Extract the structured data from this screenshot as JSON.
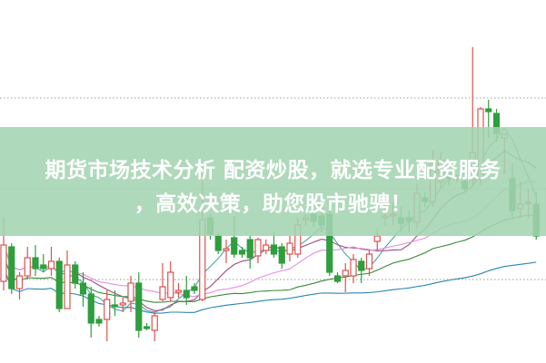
{
  "overlay": {
    "line1": "期货市场技术分析 配资炒股，就选专业配资服务",
    "line2": "，高效决策，助您股市驰骋！"
  },
  "colors": {
    "up": "#d9534f",
    "down": "#2e9e3e",
    "banner": "#a3d4b0",
    "ma5": "#4aa6a0",
    "ma10": "#9b4f7a",
    "ma20": "#e58ee0",
    "ma30": "#3a8a3a",
    "ma60": "#2a85b0",
    "grid": "#999999"
  },
  "chart_data": {
    "type": "candlestick",
    "title": "",
    "grid": "dotted horizontal",
    "note_scale": "relative price (no axis printed)",
    "ylim": [
      0,
      100
    ],
    "ohlc": [
      [
        22.5,
        32.5,
        40,
        20
      ],
      [
        32,
        20.5,
        33,
        19
      ],
      [
        20.5,
        24,
        25,
        17.5
      ],
      [
        24,
        29,
        32,
        23
      ],
      [
        29,
        26,
        32.5,
        24
      ],
      [
        27,
        26,
        30,
        25
      ],
      [
        26,
        28,
        32,
        24
      ],
      [
        28,
        15,
        29,
        14
      ],
      [
        15,
        27,
        31,
        15
      ],
      [
        27,
        22,
        28,
        20.5
      ],
      [
        22,
        19,
        25,
        15.5
      ],
      [
        19,
        11,
        21,
        7
      ],
      [
        12,
        11,
        13,
        10
      ],
      [
        12,
        17.5,
        20,
        6
      ],
      [
        16,
        15.5,
        20,
        13
      ],
      [
        16,
        16.5,
        18,
        14
      ],
      [
        17,
        22,
        24,
        14
      ],
      [
        22,
        9,
        25,
        7
      ],
      [
        10,
        9.5,
        11,
        9
      ],
      [
        9,
        13,
        14,
        6
      ],
      [
        17.5,
        21,
        27.5,
        17
      ],
      [
        18,
        25,
        28,
        17
      ],
      [
        19.5,
        20,
        22,
        18
      ],
      [
        20,
        18,
        24,
        16
      ],
      [
        21,
        20,
        22,
        19
      ],
      [
        17.5,
        39.5,
        50,
        17
      ],
      [
        40,
        35.5,
        41,
        34
      ],
      [
        35,
        31,
        36,
        30
      ],
      [
        31,
        31.5,
        34,
        27.5
      ],
      [
        34.5,
        30,
        40.5,
        29
      ],
      [
        31,
        30,
        32,
        29
      ],
      [
        34,
        29,
        35,
        26
      ],
      [
        29.5,
        34,
        34.5,
        27.5
      ],
      [
        31,
        32.5,
        34,
        30
      ],
      [
        32.5,
        30,
        36,
        29
      ],
      [
        32,
        27.5,
        33,
        26
      ],
      [
        30,
        33,
        35,
        28
      ],
      [
        30,
        38,
        40,
        29
      ],
      [
        39.5,
        40,
        41,
        38
      ],
      [
        41,
        39,
        42.5,
        37.5
      ],
      [
        40.5,
        38,
        42,
        36
      ],
      [
        41,
        25,
        42,
        24
      ],
      [
        24,
        22.5,
        25,
        22
      ],
      [
        24,
        25.5,
        27.5,
        19.5
      ],
      [
        24,
        28.5,
        30,
        22
      ],
      [
        28,
        25.5,
        29,
        22
      ],
      [
        26,
        30,
        31,
        24
      ],
      [
        33.5,
        35,
        37,
        31
      ],
      [
        40,
        40.5,
        44,
        38
      ],
      [
        40.5,
        41,
        44,
        38
      ],
      [
        40,
        38.5,
        43,
        36
      ],
      [
        40,
        39,
        42,
        36
      ],
      [
        38.75,
        46.75,
        49.5,
        37
      ],
      [
        45.5,
        44.5,
        47,
        43
      ],
      [
        44.5,
        55,
        58.75,
        43
      ],
      [
        50,
        55.75,
        58,
        48
      ],
      [
        52,
        51,
        53,
        49
      ],
      [
        50.75,
        51,
        52,
        50
      ],
      [
        50,
        48,
        50.5,
        47
      ],
      [
        50.5,
        58,
        87,
        49
      ],
      [
        50.75,
        70,
        70.5,
        49
      ],
      [
        70,
        69.25,
        72.5,
        62
      ],
      [
        68.75,
        63.25,
        70,
        61
      ],
      [
        62,
        63,
        63.25,
        52
      ],
      [
        50.75,
        42,
        55,
        40
      ],
      [
        42.5,
        43.75,
        50,
        40
      ],
      [
        44,
        44.25,
        48,
        40
      ],
      [
        43.75,
        35,
        47,
        34
      ]
    ],
    "gridlines": [
      73,
      48,
      23
    ],
    "moving_averages": [
      5,
      10,
      20,
      30,
      60
    ]
  }
}
